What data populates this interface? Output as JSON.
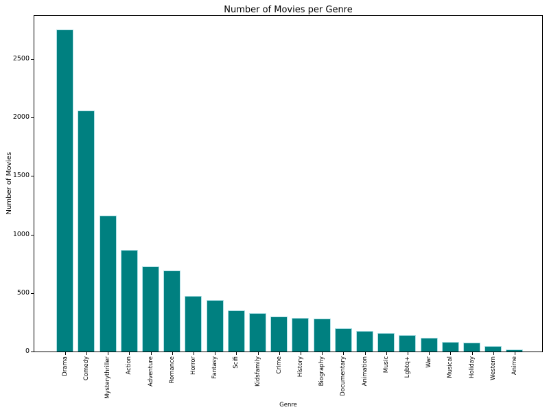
{
  "chart_data": {
    "type": "bar",
    "title": "Number of Movies per Genre",
    "xlabel": "Genre",
    "ylabel": "Number of Movies",
    "categories": [
      "Drama",
      "Comedy",
      "Mysterythriller",
      "Action",
      "Adventure",
      "Romance",
      "Horror",
      "Fantasy",
      "Scifi",
      "Kidsfamily",
      "Crime",
      "History",
      "Biography",
      "Documentary",
      "Animation",
      "Music",
      "Lgbtq+",
      "War",
      "Musical",
      "Holiday",
      "Western",
      "Anime"
    ],
    "values": [
      2755,
      2060,
      1165,
      870,
      725,
      695,
      475,
      440,
      355,
      330,
      300,
      285,
      283,
      198,
      175,
      160,
      138,
      115,
      85,
      78,
      46,
      20
    ],
    "yticks": [
      0,
      500,
      1000,
      1500,
      2000,
      2500
    ],
    "ylim": [
      0,
      2870
    ],
    "grid": false,
    "legend": "none",
    "bar_color": "#008080",
    "bar_edge_color": "#b0e0e6",
    "axis_color": "#000000",
    "background_color": "#ffffff"
  }
}
